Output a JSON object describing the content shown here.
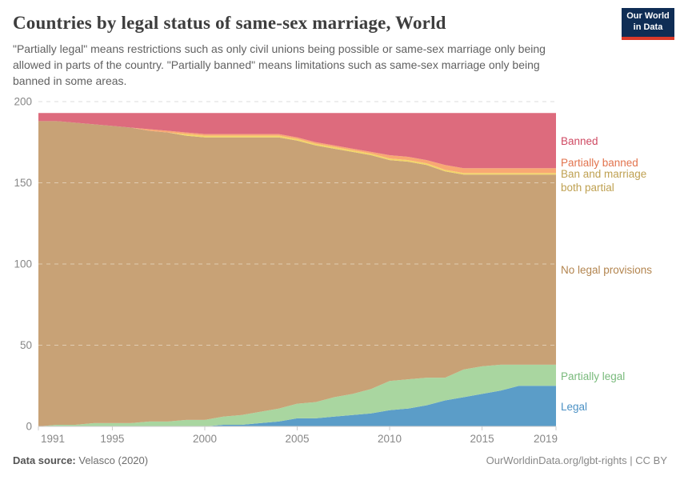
{
  "header": {
    "title": "Countries by legal status of same-sex marriage, World",
    "subtitle": "\"Partially legal\" means restrictions such as only civil unions being possible or same-sex marriage only being allowed in parts of the country. \"Partially banned\" means limitations such as same-sex marriage only being banned in some areas.",
    "logo": {
      "line1": "Our World",
      "line2": "in Data",
      "bg_color": "#0f2d55",
      "stripe_color": "#dc3a2a"
    }
  },
  "chart_data": {
    "type": "area",
    "stacked": true,
    "title": "Countries by legal status of same-sex marriage, World",
    "xlabel": "",
    "ylabel": "",
    "ylim": [
      0,
      200
    ],
    "yticks": [
      0,
      50,
      100,
      150,
      200
    ],
    "xticks": [
      1991,
      1995,
      2000,
      2005,
      2010,
      2015,
      2019
    ],
    "grid": true,
    "legend_position": "right",
    "x": [
      1991,
      1992,
      1993,
      1994,
      1995,
      1996,
      1997,
      1998,
      1999,
      2000,
      2001,
      2002,
      2003,
      2004,
      2005,
      2006,
      2007,
      2008,
      2009,
      2010,
      2011,
      2012,
      2013,
      2014,
      2015,
      2016,
      2017,
      2018,
      2019
    ],
    "series": [
      {
        "name": "Legal",
        "fill": "#5b9dc8",
        "label_color": "#4a90c4",
        "values": [
          0,
          0,
          0,
          0,
          0,
          0,
          0,
          0,
          0,
          0,
          1,
          1,
          2,
          3,
          5,
          5,
          6,
          7,
          8,
          10,
          11,
          13,
          16,
          18,
          20,
          22,
          25,
          25,
          25
        ]
      },
      {
        "name": "Partially legal",
        "fill": "#a9d6a0",
        "label_color": "#79ba7c",
        "values": [
          0,
          1,
          1,
          2,
          2,
          2,
          3,
          3,
          4,
          4,
          5,
          6,
          7,
          8,
          9,
          10,
          12,
          13,
          15,
          18,
          18,
          17,
          14,
          17,
          17,
          16,
          13,
          13,
          13
        ]
      },
      {
        "name": "No legal provisions",
        "fill": "#c8a276",
        "label_color": "#b3854f",
        "values": [
          188,
          187,
          186,
          184,
          183,
          182,
          179,
          178,
          175,
          174,
          172,
          171,
          169,
          167,
          162,
          158,
          153,
          149,
          144,
          136,
          134,
          131,
          127,
          120,
          118,
          117,
          117,
          117,
          117
        ]
      },
      {
        "name": "Ban and marriage both partial",
        "fill": "#f3d468",
        "label_color": "#bfa152",
        "values": [
          0,
          0,
          0,
          0,
          0,
          0,
          0,
          0,
          1,
          1,
          1,
          1,
          1,
          1,
          1,
          1,
          1,
          1,
          1,
          1,
          1,
          1,
          1,
          1,
          1,
          1,
          1,
          1,
          1
        ]
      },
      {
        "name": "Partially banned",
        "fill": "#f8a873",
        "label_color": "#e2734d",
        "values": [
          0,
          0,
          0,
          0,
          0,
          0,
          1,
          1,
          1,
          1,
          1,
          1,
          1,
          1,
          1,
          1,
          1,
          1,
          1,
          2,
          2,
          2,
          3,
          3,
          3,
          3,
          3,
          3,
          3
        ]
      },
      {
        "name": "Banned",
        "fill": "#dd6b7d",
        "label_color": "#cf4a63",
        "values": [
          5,
          5,
          6,
          7,
          8,
          9,
          10,
          11,
          12,
          13,
          13,
          13,
          13,
          13,
          15,
          18,
          20,
          22,
          24,
          26,
          27,
          29,
          32,
          34,
          34,
          34,
          34,
          34,
          34
        ]
      }
    ]
  },
  "footer": {
    "datasource_label": "Data source:",
    "datasource_value": " Velasco (2020)",
    "link": "OurWorldinData.org/lgbt-rights | CC BY"
  }
}
